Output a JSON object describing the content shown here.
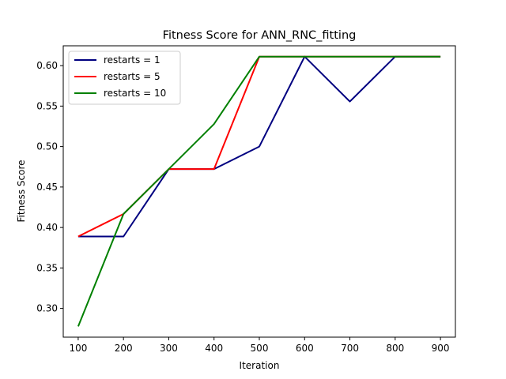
{
  "chart_data": {
    "type": "line",
    "title": "Fitness Score for ANN_RNC_fitting",
    "xlabel": "Iteration",
    "ylabel": "Fitness Score",
    "x": [
      100,
      200,
      300,
      400,
      500,
      600,
      700,
      800,
      900
    ],
    "xlim": [
      67,
      933
    ],
    "ylim": [
      0.2645,
      0.6245
    ],
    "xticks": [
      "100",
      "200",
      "300",
      "400",
      "500",
      "600",
      "700",
      "800",
      "900"
    ],
    "yticks": [
      "0.30",
      "0.35",
      "0.40",
      "0.45",
      "0.50",
      "0.55",
      "0.60"
    ],
    "grid": false,
    "legend_position": "upper left",
    "series": [
      {
        "name": "restarts = 1",
        "color": "#000080",
        "values": [
          0.3889,
          0.3889,
          0.4722,
          0.4722,
          0.5,
          0.6111,
          0.5556,
          0.6111,
          0.6111
        ]
      },
      {
        "name": "restarts = 5",
        "color": "#ff0000",
        "values": [
          0.3889,
          0.4167,
          0.4722,
          0.4722,
          0.6111,
          0.6111,
          0.6111,
          0.6111,
          0.6111
        ]
      },
      {
        "name": "restarts = 10",
        "color": "#008000",
        "values": [
          0.2778,
          0.4167,
          0.4722,
          0.5278,
          0.6111,
          0.6111,
          0.6111,
          0.6111,
          0.6111
        ]
      }
    ]
  }
}
